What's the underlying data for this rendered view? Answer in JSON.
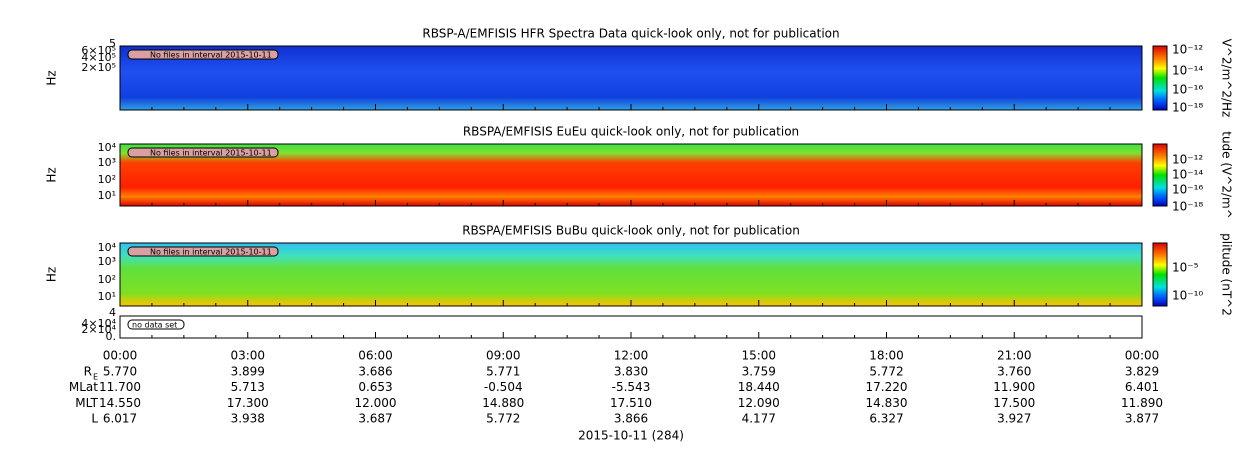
{
  "panels": [
    {
      "title": "RBSP-A/EMFISIS  HFR Spectra Data quick-look only, not for publication",
      "ylabel": "Hz",
      "yticks": [
        "5",
        "6×10⁵",
        "4×10⁵",
        "2×10⁵"
      ],
      "note": "No files in interval 2015-10-11",
      "colorbar": {
        "label": "V^2/m^2/Hz",
        "ticks": [
          "10⁻¹²",
          "10⁻¹⁴",
          "10⁻¹⁶",
          "10⁻¹⁸"
        ]
      }
    },
    {
      "title": "RBSPA/EMFISIS  EuEu quick-look only, not for publication",
      "ylabel": "Hz",
      "yticks": [
        "10⁴",
        "10³",
        "10²",
        "10¹"
      ],
      "note": "No files in interval 2015-10-11",
      "colorbar": {
        "label": "tude (V^2/m^",
        "ticks": [
          "10⁻¹²",
          "10⁻¹⁴",
          "10⁻¹⁶",
          "10⁻¹⁸"
        ]
      }
    },
    {
      "title": "RBSPA/EMFISIS  BuBu quick-look only, not for publication",
      "ylabel": "Hz",
      "yticks": [
        "10⁴",
        "10³",
        "10²",
        "10¹"
      ],
      "note": "No files in interval 2015-10-11",
      "colorbar": {
        "label": "plitude (nT^2",
        "ticks": [
          "10⁻⁵",
          "10⁻¹⁰"
        ]
      }
    },
    {
      "yticks": [
        "4",
        "4×10⁴",
        "2×10⁴",
        "0."
      ],
      "note": "no data set"
    }
  ],
  "x_ticks": [
    "00:00",
    "03:00",
    "06:00",
    "09:00",
    "12:00",
    "15:00",
    "18:00",
    "21:00",
    "00:00"
  ],
  "ephemeris": [
    {
      "label": "R",
      "sub": "E",
      "values": [
        "5.770",
        "3.899",
        "3.686",
        "5.771",
        "3.830",
        "3.759",
        "5.772",
        "3.760",
        "3.829"
      ]
    },
    {
      "label": "MLat",
      "values": [
        "11.700",
        "5.713",
        "0.653",
        "-0.504",
        "-5.543",
        "18.440",
        "17.220",
        "11.900",
        "6.401"
      ]
    },
    {
      "label": "MLT",
      "values": [
        "14.550",
        "17.300",
        "12.000",
        "14.880",
        "17.510",
        "12.090",
        "14.830",
        "17.500",
        "11.890"
      ]
    },
    {
      "label": "L",
      "values": [
        "6.017",
        "3.938",
        "3.687",
        "5.772",
        "3.866",
        "4.177",
        "6.327",
        "3.927",
        "3.877"
      ]
    }
  ],
  "xlabel": "2015-10-11 (284)"
}
